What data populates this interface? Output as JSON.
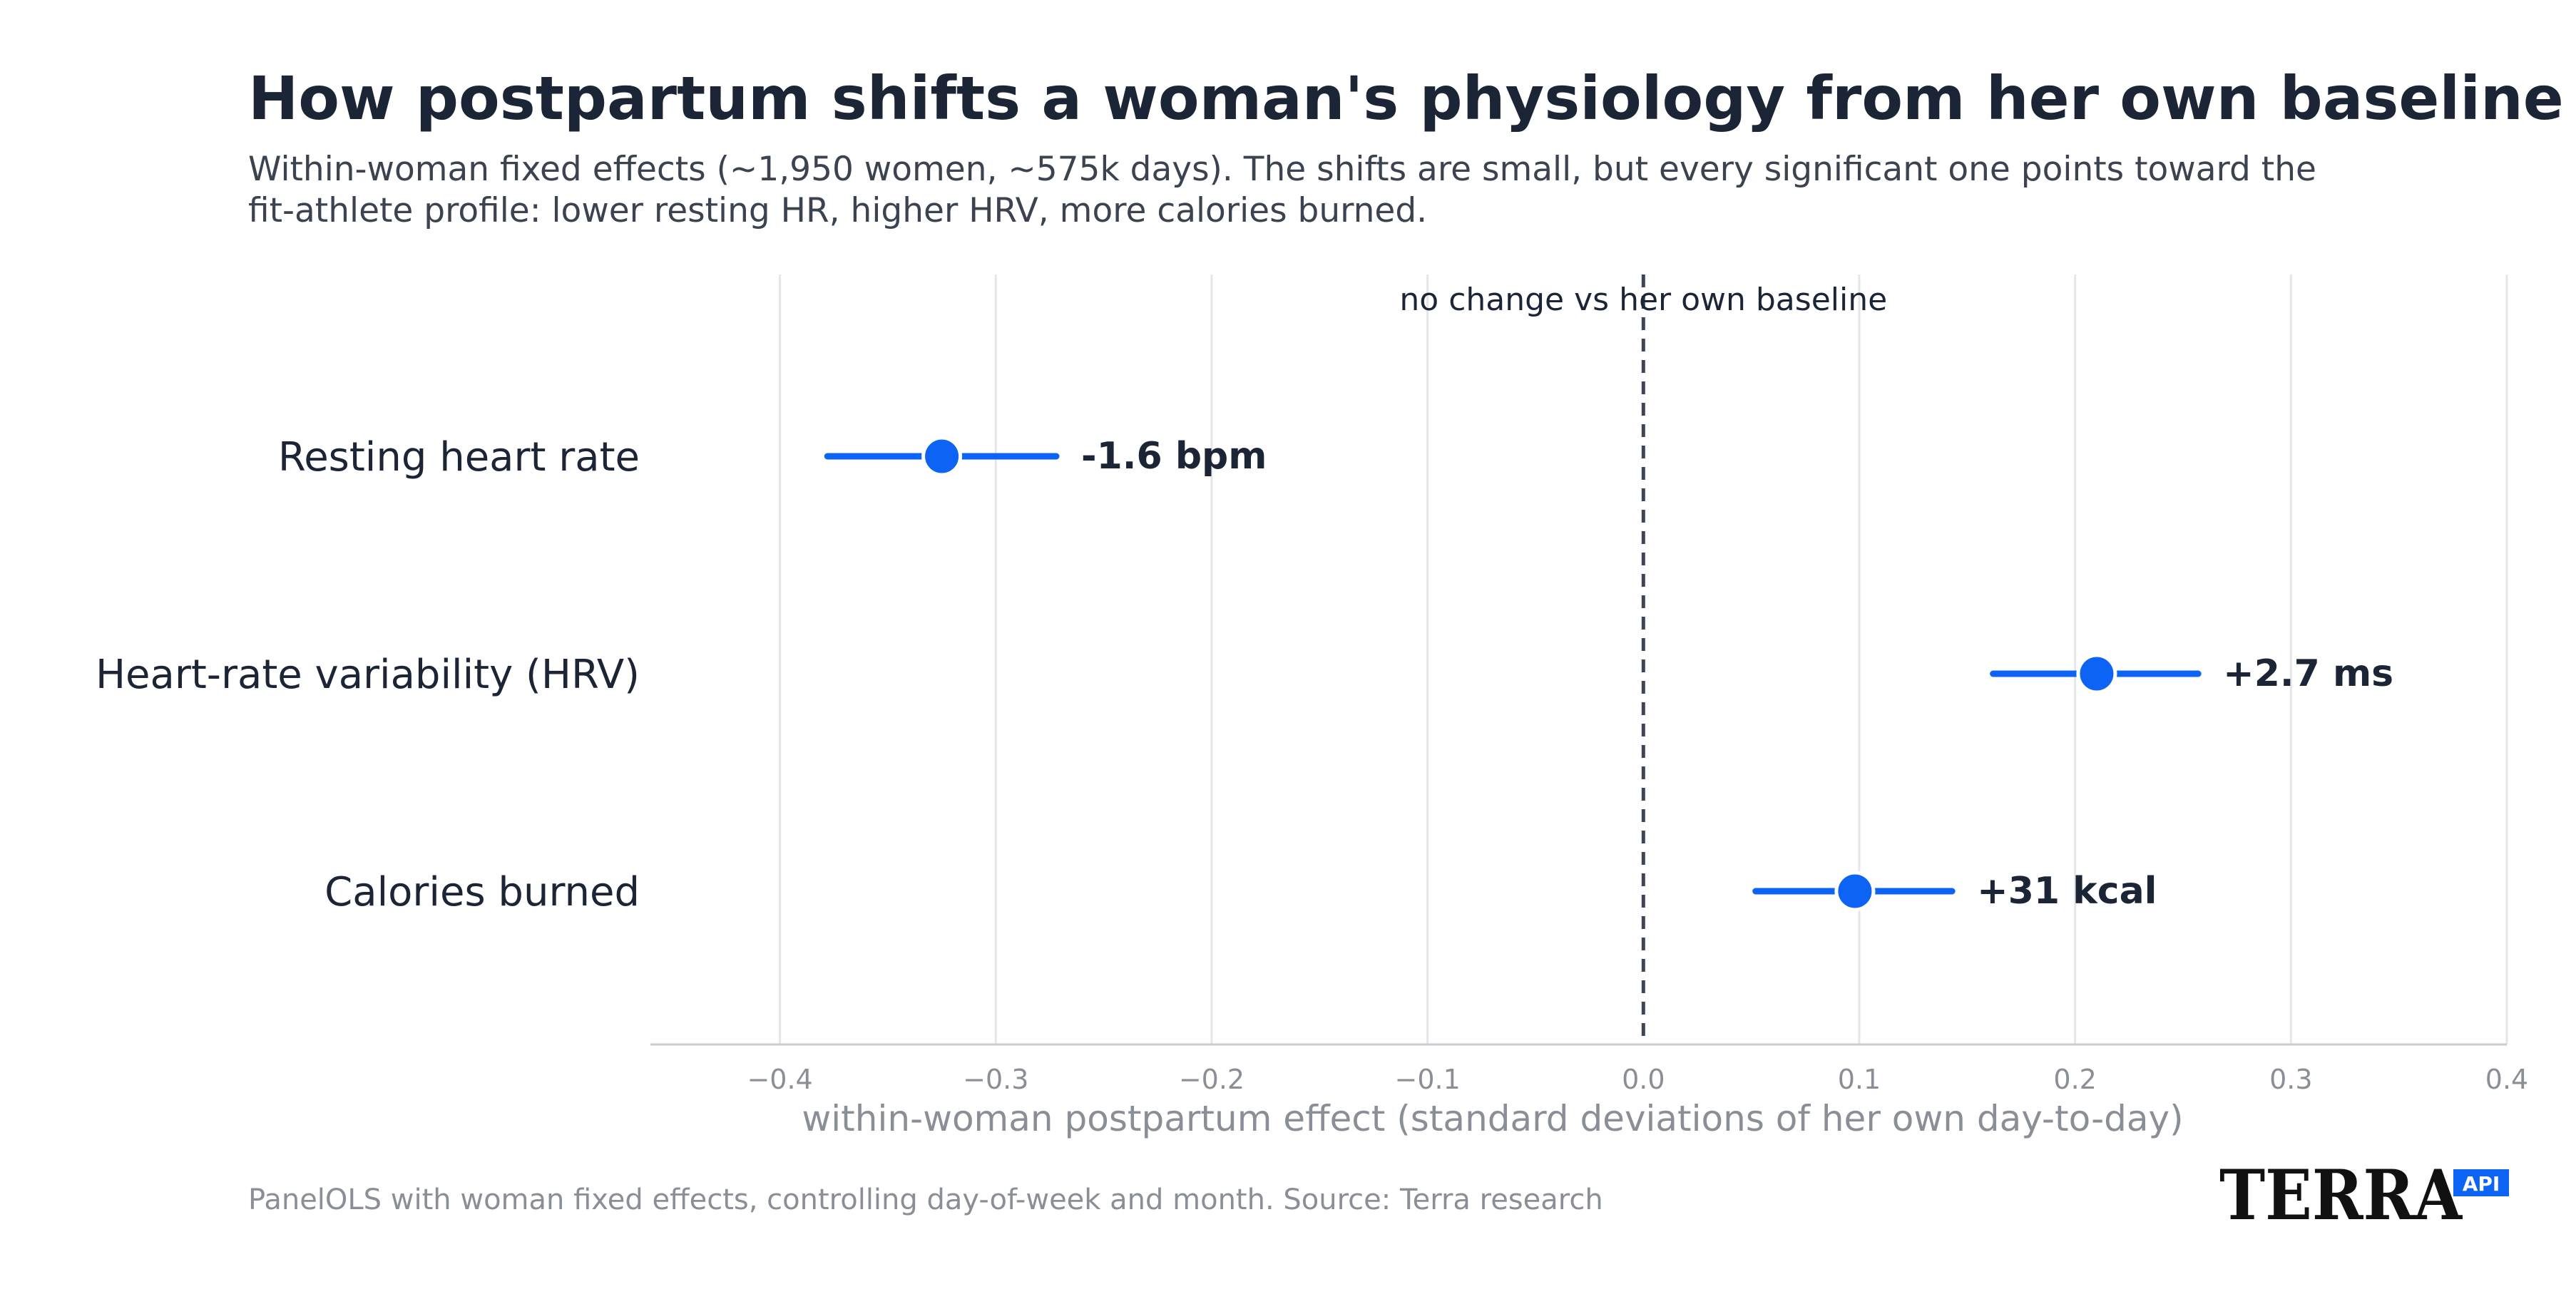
{
  "chart_data": {
    "type": "scatter",
    "title": "How postpartum shifts a woman's physiology from her own baseline",
    "subtitle_lines": [
      "Within-woman fixed effects (~1,950 women, ~575k days). The shifts are small, but every significant one points toward the",
      "fit-athlete profile: lower resting HR, higher HRV, more calories burned."
    ],
    "xlabel": "within-woman postpartum effect  (standard deviations of her own day-to-day)",
    "xlim": [
      -0.46,
      0.4
    ],
    "x_ticks": [
      -0.4,
      -0.3,
      -0.2,
      -0.1,
      0.0,
      0.1,
      0.2,
      0.3,
      0.4
    ],
    "x_tick_labels": [
      "−0.4",
      "−0.3",
      "−0.2",
      "−0.1",
      "0.0",
      "0.1",
      "0.2",
      "0.3",
      "0.4"
    ],
    "grid": true,
    "reference_line": {
      "x": 0.0,
      "label": "no change vs her own baseline"
    },
    "rows": [
      {
        "label": "Resting heart rate",
        "estimate": -0.325,
        "ci_low": -0.378,
        "ci_high": -0.272,
        "value_label": "-1.6 bpm"
      },
      {
        "label": "Heart-rate variability (HRV)",
        "estimate": 0.21,
        "ci_low": 0.162,
        "ci_high": 0.257,
        "value_label": "+2.7 ms"
      },
      {
        "label": "Calories burned",
        "estimate": 0.098,
        "ci_low": 0.052,
        "ci_high": 0.143,
        "value_label": "+31 kcal"
      }
    ],
    "point_color": "#0d63f3",
    "grid_color": "#e5e6e9",
    "reference_line_color": "#3d4457"
  },
  "footnote": "PanelOLS with woman fixed effects, controlling day-of-week and month.   Source: Terra research",
  "logo": {
    "text": "TERRA",
    "badge": "API",
    "badge_color": "#0d63f3"
  }
}
